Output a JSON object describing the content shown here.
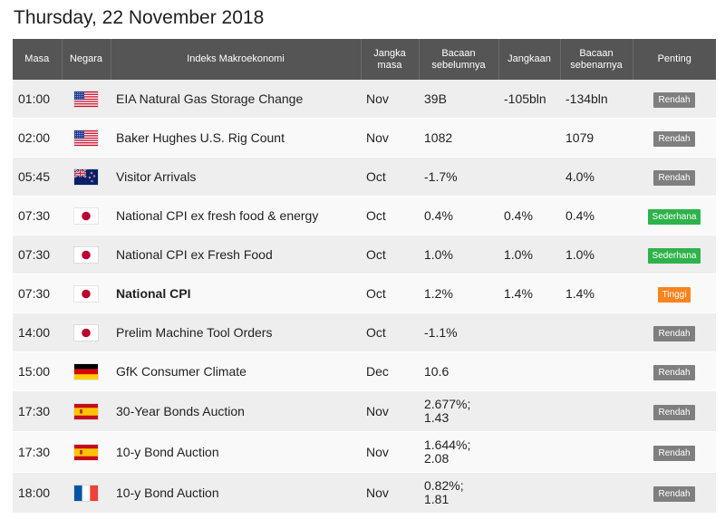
{
  "title": "Thursday, 22 November 2018",
  "headers": {
    "time": "Masa",
    "country": "Negara",
    "event": "Indeks Makroekonomi",
    "period_l1": "Jangka",
    "period_l2": "masa",
    "previous_l1": "Bacaan",
    "previous_l2": "sebelumnya",
    "forecast": "Jangkaan",
    "actual_l1": "Bacaan",
    "actual_l2": "sebenarnya",
    "importance": "Penting"
  },
  "importance_colors": {
    "Rendah": "#7f7f7f",
    "Sederhana": "#2eb24b",
    "Tinggi": "#f7841e"
  },
  "negative_color": "#e02020",
  "rows": [
    {
      "time": "01:00",
      "country": "us-flag-icon",
      "event": "EIA Natural Gas Storage Change",
      "period": "Nov",
      "previous": "39B",
      "forecast": "-105bln",
      "actual": "-134bln",
      "importance": "Rendah"
    },
    {
      "time": "02:00",
      "country": "us-flag-icon",
      "event": "Baker Hughes U.S. Rig Count",
      "period": "Nov",
      "previous": "1082",
      "forecast": "",
      "actual": "1079",
      "importance": "Rendah"
    },
    {
      "time": "05:45",
      "country": "nz-flag-icon",
      "event": "Visitor Arrivals",
      "period": "Oct",
      "previous": "-1.7%",
      "forecast": "",
      "actual": "4.0%",
      "importance": "Rendah"
    },
    {
      "time": "07:30",
      "country": "jp-flag-icon",
      "event": "National CPI ex fresh food & energy",
      "period": "Oct",
      "previous": "0.4%",
      "forecast": "0.4%",
      "actual": "0.4%",
      "importance": "Sederhana"
    },
    {
      "time": "07:30",
      "country": "jp-flag-icon",
      "event": "National CPI ex Fresh Food",
      "period": "Oct",
      "previous": "1.0%",
      "forecast": "1.0%",
      "actual": "1.0%",
      "importance": "Sederhana"
    },
    {
      "time": "07:30",
      "country": "jp-flag-icon",
      "event": "National CPI",
      "period": "Oct",
      "previous": "1.2%",
      "forecast": "1.4%",
      "actual": "1.4%",
      "importance": "Tinggi"
    },
    {
      "time": "14:00",
      "country": "jp-flag-icon",
      "event": "Prelim Machine Tool Orders",
      "period": "Oct",
      "previous": "-1.1%",
      "forecast": "",
      "actual": "",
      "importance": "Rendah"
    },
    {
      "time": "15:00",
      "country": "de-flag-icon",
      "event": "GfK Consumer Climate",
      "period": "Dec",
      "previous": "10.6",
      "forecast": "",
      "actual": "",
      "importance": "Rendah"
    },
    {
      "time": "17:30",
      "country": "es-flag-icon",
      "event": "30-Year Bonds Auction",
      "period": "Nov",
      "previous": "2.677%;\n1.43",
      "forecast": "",
      "actual": "",
      "importance": "Rendah"
    },
    {
      "time": "17:30",
      "country": "es-flag-icon",
      "event": "10-y Bond Auction",
      "period": "Nov",
      "previous": "1.644%;\n2.08",
      "forecast": "",
      "actual": "",
      "importance": "Rendah"
    },
    {
      "time": "18:00",
      "country": "fr-flag-icon",
      "event": "10-y Bond Auction",
      "period": "Nov",
      "previous": "0.82%;\n1.81",
      "forecast": "",
      "actual": "",
      "importance": "Rendah"
    }
  ]
}
